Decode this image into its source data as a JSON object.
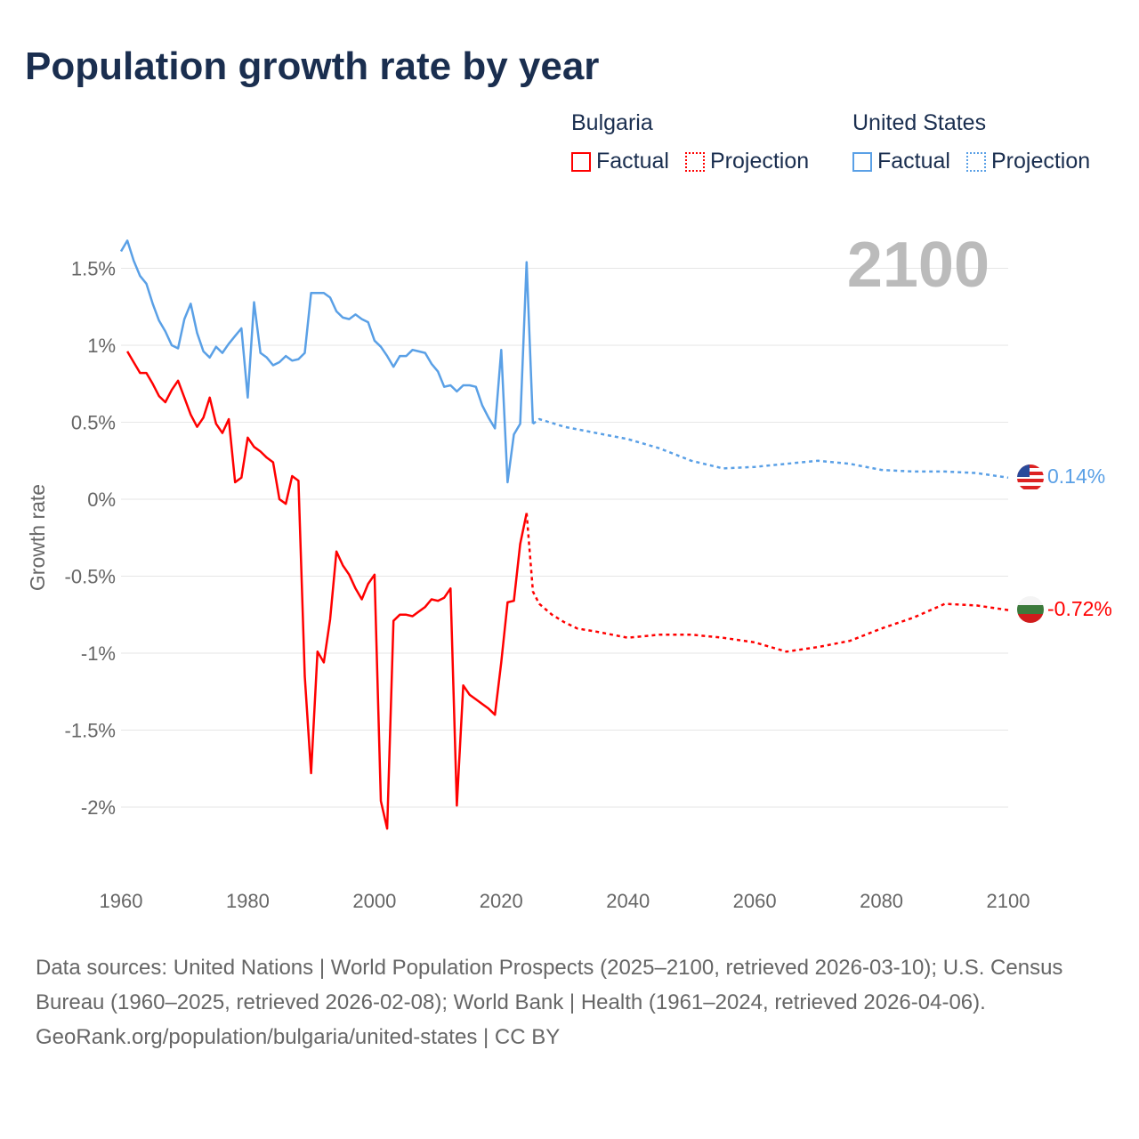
{
  "chart_data": {
    "type": "line",
    "title": "Population growth rate by year",
    "ylabel": "Growth rate",
    "xlabel": "",
    "xlim": [
      1960,
      2100
    ],
    "ylim": [
      -2.4,
      1.8
    ],
    "x_ticks": [
      "1960",
      "1980",
      "2000",
      "2020",
      "2040",
      "2060",
      "2080",
      "2100"
    ],
    "y_ticks": [
      {
        "v": 1.5,
        "label": "1.5%"
      },
      {
        "v": 1,
        "label": "1%"
      },
      {
        "v": 0.5,
        "label": "0.5%"
      },
      {
        "v": 0,
        "label": "0%"
      },
      {
        "v": -0.5,
        "label": "-0.5%"
      },
      {
        "v": -1,
        "label": "-1%"
      },
      {
        "v": -1.5,
        "label": "-1.5%"
      },
      {
        "v": -2,
        "label": "-2%"
      }
    ],
    "grid": true,
    "current_year_label": "2100",
    "legend": {
      "groups": [
        {
          "name": "Bulgaria",
          "items": [
            "Factual",
            "Projection"
          ]
        },
        {
          "name": "United States",
          "items": [
            "Factual",
            "Projection"
          ]
        }
      ],
      "placement": "top-right"
    },
    "series": [
      {
        "name": "United States",
        "color": "#5aa0e6",
        "end_label": "0.14%",
        "factual": {
          "x": [
            1960,
            1961,
            1962,
            1963,
            1964,
            1965,
            1966,
            1967,
            1968,
            1969,
            1970,
            1971,
            1972,
            1973,
            1974,
            1975,
            1976,
            1977,
            1978,
            1979,
            1980,
            1981,
            1982,
            1983,
            1984,
            1985,
            1986,
            1987,
            1988,
            1989,
            1990,
            1991,
            1992,
            1993,
            1994,
            1995,
            1996,
            1997,
            1998,
            1999,
            2000,
            2001,
            2002,
            2003,
            2004,
            2005,
            2006,
            2007,
            2008,
            2009,
            2010,
            2011,
            2012,
            2013,
            2014,
            2015,
            2016,
            2017,
            2018,
            2019,
            2020,
            2021,
            2022,
            2023,
            2024,
            2025
          ],
          "y": [
            1.61,
            1.68,
            1.55,
            1.45,
            1.4,
            1.27,
            1.16,
            1.09,
            1.0,
            0.98,
            1.17,
            1.27,
            1.08,
            0.96,
            0.92,
            0.99,
            0.95,
            1.01,
            1.06,
            1.11,
            0.66,
            1.28,
            0.95,
            0.92,
            0.87,
            0.89,
            0.93,
            0.9,
            0.91,
            0.95,
            1.34,
            1.34,
            1.34,
            1.31,
            1.22,
            1.18,
            1.17,
            1.2,
            1.17,
            1.15,
            1.03,
            0.99,
            0.93,
            0.86,
            0.93,
            0.93,
            0.97,
            0.96,
            0.95,
            0.88,
            0.83,
            0.73,
            0.74,
            0.7,
            0.74,
            0.74,
            0.73,
            0.61,
            0.53,
            0.46,
            0.97,
            0.11,
            0.42,
            0.49,
            1.54,
            0.49
          ]
        },
        "projection": {
          "x": [
            2025,
            2026,
            2030,
            2035,
            2040,
            2045,
            2050,
            2055,
            2060,
            2065,
            2070,
            2075,
            2080,
            2085,
            2090,
            2095,
            2100
          ],
          "y": [
            0.49,
            0.52,
            0.47,
            0.43,
            0.39,
            0.33,
            0.25,
            0.2,
            0.21,
            0.23,
            0.25,
            0.23,
            0.19,
            0.18,
            0.18,
            0.17,
            0.14
          ]
        }
      },
      {
        "name": "Bulgaria",
        "color": "#ff0000",
        "end_label": "-0.72%",
        "factual": {
          "x": [
            1961,
            1962,
            1963,
            1964,
            1965,
            1966,
            1967,
            1968,
            1969,
            1970,
            1971,
            1972,
            1973,
            1974,
            1975,
            1976,
            1977,
            1978,
            1979,
            1980,
            1981,
            1982,
            1983,
            1984,
            1985,
            1986,
            1987,
            1988,
            1989,
            1990,
            1991,
            1992,
            1993,
            1994,
            1995,
            1996,
            1997,
            1998,
            1999,
            2000,
            2001,
            2002,
            2003,
            2004,
            2005,
            2006,
            2007,
            2008,
            2009,
            2010,
            2011,
            2012,
            2013,
            2014,
            2015,
            2016,
            2017,
            2018,
            2019,
            2020,
            2021,
            2022,
            2023,
            2024
          ],
          "y": [
            0.96,
            0.89,
            0.82,
            0.82,
            0.75,
            0.67,
            0.63,
            0.71,
            0.77,
            0.66,
            0.55,
            0.47,
            0.53,
            0.66,
            0.49,
            0.43,
            0.52,
            0.11,
            0.14,
            0.4,
            0.34,
            0.31,
            0.27,
            0.24,
            0.0,
            -0.03,
            0.15,
            0.12,
            -1.15,
            -1.78,
            -0.99,
            -1.06,
            -0.78,
            -0.34,
            -0.43,
            -0.49,
            -0.58,
            -0.65,
            -0.55,
            -0.49,
            -1.96,
            -2.14,
            -0.79,
            -0.75,
            -0.75,
            -0.76,
            -0.73,
            -0.7,
            -0.65,
            -0.66,
            -0.64,
            -0.58,
            -1.99,
            -1.21,
            -1.27,
            -1.3,
            -1.33,
            -1.36,
            -1.4,
            -1.06,
            -0.67,
            -0.66,
            -0.29,
            -0.09
          ]
        },
        "projection": {
          "x": [
            2024,
            2025,
            2026,
            2028,
            2030,
            2032,
            2035,
            2040,
            2045,
            2050,
            2055,
            2060,
            2065,
            2070,
            2075,
            2080,
            2085,
            2090,
            2095,
            2100
          ],
          "y": [
            -0.09,
            -0.6,
            -0.68,
            -0.75,
            -0.8,
            -0.84,
            -0.86,
            -0.9,
            -0.88,
            -0.88,
            -0.9,
            -0.93,
            -0.99,
            -0.96,
            -0.92,
            -0.84,
            -0.77,
            -0.68,
            -0.69,
            -0.72
          ]
        }
      }
    ]
  },
  "footer": {
    "sources": "Data sources: United Nations | World Population Prospects (2025–2100, retrieved 2026-03-10); U.S. Census Bureau (1960–2025, retrieved 2026-02-08); World Bank | Health (1961–2024, retrieved 2026-04-06).",
    "credit": "GeoRank.org/population/bulgaria/united-states | CC BY"
  }
}
